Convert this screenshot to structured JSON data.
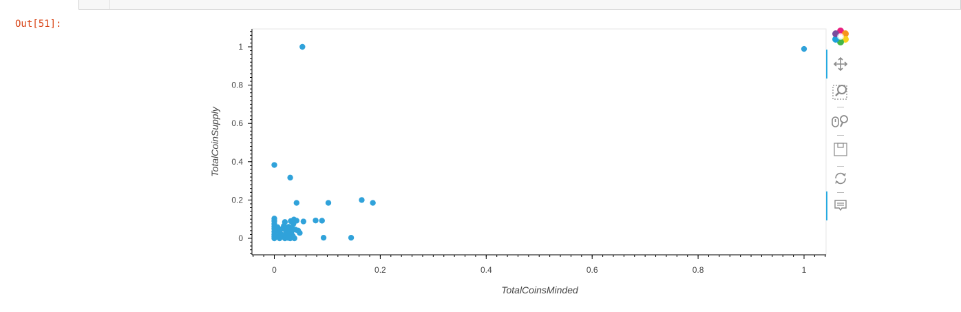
{
  "notebook": {
    "out_prompt": "Out[51]:"
  },
  "chart_data": {
    "type": "scatter",
    "title": "",
    "xlabel": "TotalCoinsMinded",
    "ylabel": "TotalCoinSupply",
    "xlim": [
      -0.04,
      1.04
    ],
    "ylim": [
      -0.08,
      1.09
    ],
    "x_ticks": [
      0,
      0.2,
      0.4,
      0.6,
      0.8,
      1
    ],
    "x_tick_labels": [
      "0",
      "0.2",
      "0.4",
      "0.6",
      "0.8",
      "1"
    ],
    "y_ticks": [
      0,
      0.2,
      0.4,
      0.6,
      0.8,
      1
    ],
    "y_tick_labels": [
      "0",
      "0.2",
      "0.4",
      "0.6",
      "0.8",
      "1"
    ],
    "grid": false,
    "marker_color": "#30a2da",
    "points": [
      [
        0.053,
        1.0
      ],
      [
        1.0,
        0.989
      ],
      [
        0.0,
        0.383
      ],
      [
        0.03,
        0.317
      ],
      [
        0.165,
        0.2
      ],
      [
        0.186,
        0.185
      ],
      [
        0.102,
        0.185
      ],
      [
        0.042,
        0.185
      ],
      [
        0.0,
        0.103
      ],
      [
        0.0,
        0.09
      ],
      [
        0.0,
        0.075
      ],
      [
        0.0,
        0.062
      ],
      [
        0.0,
        0.05
      ],
      [
        0.0,
        0.035
      ],
      [
        0.0,
        0.02
      ],
      [
        0.0,
        0.01
      ],
      [
        0.0,
        0.0
      ],
      [
        0.005,
        0.01
      ],
      [
        0.008,
        0.04
      ],
      [
        0.01,
        0.0
      ],
      [
        0.012,
        0.022
      ],
      [
        0.015,
        0.05
      ],
      [
        0.016,
        0.01
      ],
      [
        0.02,
        0.0
      ],
      [
        0.02,
        0.085
      ],
      [
        0.022,
        0.03
      ],
      [
        0.024,
        0.045
      ],
      [
        0.025,
        0.012
      ],
      [
        0.027,
        0.06
      ],
      [
        0.028,
        0.022
      ],
      [
        0.03,
        0.0
      ],
      [
        0.031,
        0.09
      ],
      [
        0.032,
        0.035
      ],
      [
        0.034,
        0.05
      ],
      [
        0.035,
        0.012
      ],
      [
        0.036,
        0.075
      ],
      [
        0.037,
        0.098
      ],
      [
        0.038,
        0.0
      ],
      [
        0.04,
        0.045
      ],
      [
        0.042,
        0.092
      ],
      [
        0.045,
        0.04
      ],
      [
        0.048,
        0.028
      ],
      [
        0.055,
        0.088
      ],
      [
        0.078,
        0.093
      ],
      [
        0.09,
        0.092
      ],
      [
        0.093,
        0.003
      ],
      [
        0.145,
        0.003
      ],
      [
        0.018,
        0.065
      ],
      [
        0.026,
        0.002
      ],
      [
        0.033,
        0.018
      ],
      [
        0.01,
        0.03
      ],
      [
        0.006,
        0.058
      ]
    ]
  },
  "toolbar": {
    "tools": [
      {
        "name": "bokeh-logo",
        "icon": "bokeh-logo-icon",
        "active": false
      },
      {
        "name": "pan",
        "icon": "pan-icon",
        "active": true
      },
      {
        "name": "box-zoom",
        "icon": "box-zoom-icon",
        "active": false
      },
      {
        "name": "wheel-zoom",
        "icon": "wheel-zoom-icon",
        "active": false
      },
      {
        "name": "save",
        "icon": "save-icon",
        "active": false
      },
      {
        "name": "reset",
        "icon": "reset-icon",
        "active": false
      },
      {
        "name": "hover",
        "icon": "hover-icon",
        "active": true
      }
    ]
  }
}
